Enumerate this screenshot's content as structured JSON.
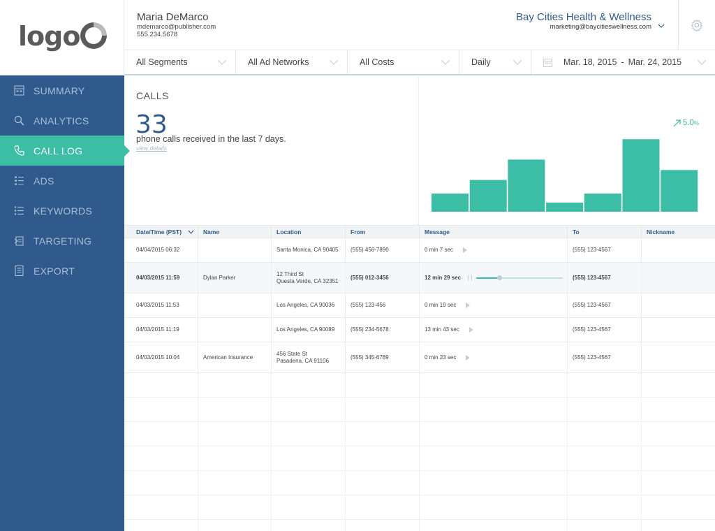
{
  "logo": {
    "text": "logo"
  },
  "user": {
    "name": "Maria DeMarco",
    "email": "mdemarco@publisher.com",
    "phone": "555.234.5678"
  },
  "account": {
    "name": "Bay Cities Health & Wellness",
    "email": "marketing@baycitieswellness.com"
  },
  "nav": [
    {
      "label": "SUMMARY",
      "icon": "summary-icon"
    },
    {
      "label": "ANALYTICS",
      "icon": "analytics-icon"
    },
    {
      "label": "CALL LOG",
      "icon": "phone-icon",
      "active": true
    },
    {
      "label": "ADS",
      "icon": "ads-icon"
    },
    {
      "label": "KEYWORDS",
      "icon": "keywords-icon"
    },
    {
      "label": "TARGETING",
      "icon": "targeting-icon"
    },
    {
      "label": "EXPORT",
      "icon": "export-icon"
    }
  ],
  "filters": {
    "segments": "All Segments",
    "networks": "All Ad Networks",
    "costs": "All Costs",
    "interval": "Daily",
    "date_start": "Mar. 18, 2015",
    "date_sep": "-",
    "date_end": "Mar. 24, 2015"
  },
  "calls": {
    "title": "CALLS",
    "count": "33",
    "description": "phone calls received in the last 7 days.",
    "view_details": "view details",
    "trend": "5.0",
    "trend_unit": "%"
  },
  "chart_data": {
    "type": "bar",
    "values": [
      4,
      7,
      11.5,
      2,
      4,
      16,
      9.2
    ],
    "ylim": [
      0,
      16.5
    ]
  },
  "table": {
    "columns": [
      "Date/Time (PST)",
      "Name",
      "Location",
      "From",
      "Message",
      "To",
      "Nickname"
    ],
    "rows": [
      {
        "date": "04/04/2015  06:32",
        "name": "",
        "loc1": "Santa Monica, CA 90405",
        "loc2": "",
        "from": "(555) 456-7890",
        "msg": "0 min 7 sec",
        "to": "(555) 123-4567",
        "nick": ""
      },
      {
        "date": "04/03/2015  11:59",
        "name": "Dylan Parker",
        "loc1": "12 Third St",
        "loc2": "Questa Verde, CA 32351",
        "from": "(555) 012-3456",
        "msg": "12 min 29 sec",
        "to": "(555) 123-4567",
        "nick": "",
        "playing": true,
        "progress": 0.27
      },
      {
        "date": "04/03/2015  11:53",
        "name": "",
        "loc1": "Los Angeles, CA 90036",
        "loc2": "",
        "from": "(555) 123-456",
        "msg": "0 min 19 sec",
        "to": "(555) 123-4567",
        "nick": ""
      },
      {
        "date": "04/03/2015  11:19",
        "name": "",
        "loc1": "Los Angeles, CA 90089",
        "loc2": "",
        "from": "(555) 234-5678",
        "msg": "13 min 43 sec",
        "to": "(555) 123-4567",
        "nick": ""
      },
      {
        "date": "04/03/2015  10:04",
        "name": "American Insurance",
        "loc1": "456 State St",
        "loc2": "Pasadena, CA 91106",
        "from": "(555) 345-6789",
        "msg": "0 min 23 sec",
        "to": "(555) 123-4567",
        "nick": ""
      }
    ]
  },
  "colors": {
    "sidebar": "#305a8b",
    "accent": "#3cbda6",
    "title": "#305a8b"
  }
}
